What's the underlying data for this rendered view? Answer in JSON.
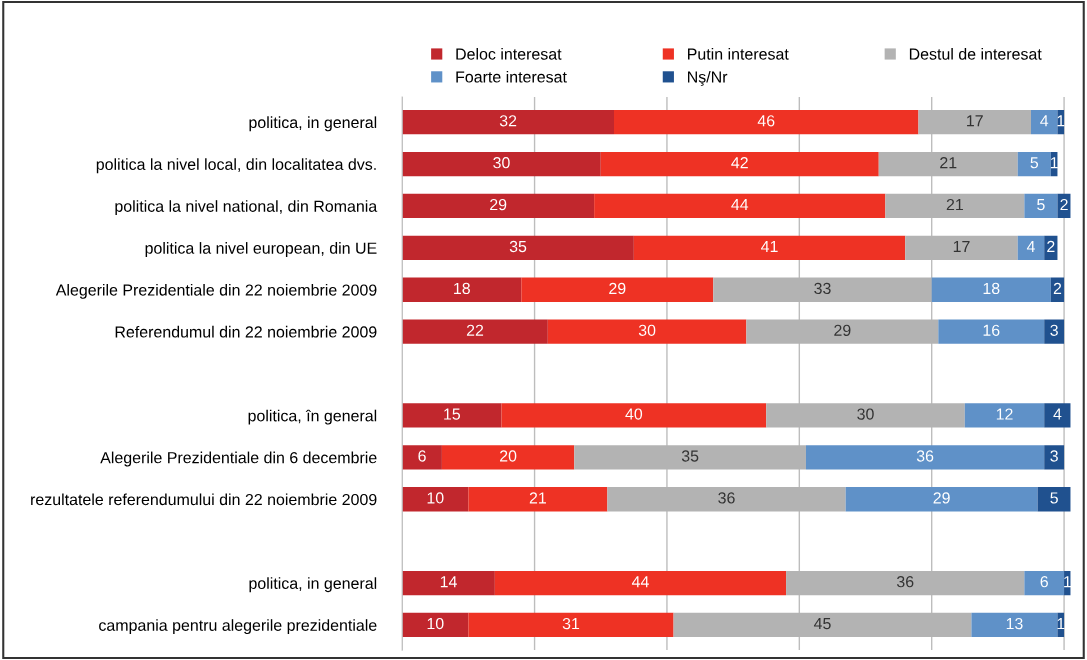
{
  "chart_data": {
    "type": "bar",
    "orientation": "horizontal",
    "stacked": true,
    "data_labels": true,
    "grid": "x",
    "legend": "top",
    "tick_labels": "y",
    "categories": [
      "politica, in general",
      "politica la nivel local, din localitatea dvs.",
      "politica la nivel national, din Romania",
      "politica la nivel european, din UE",
      "Alegerile Prezidentiale din 22 noiembrie 2009",
      "Referendumul din 22 noiembrie 2009",
      null,
      "politica, în general",
      "Alegerile Prezidentiale din 6 decembrie",
      "rezultatele referendumului din 22 noiembrie 2009",
      null,
      "politica, in general",
      "campania pentru alegerile prezidentiale"
    ],
    "xlim": [
      0,
      101
    ],
    "xticks": [
      {
        "value": 0,
        "label": null
      },
      {
        "value": 20,
        "label": null
      },
      {
        "value": 40,
        "label": null
      },
      {
        "value": 60,
        "label": null
      },
      {
        "value": 80,
        "label": null
      },
      {
        "value": 100,
        "label": null
      }
    ],
    "series": [
      {
        "name": "Deloc interesat",
        "color": "#c1272d",
        "values": [
          32,
          30,
          29,
          35,
          18,
          22,
          null,
          15,
          6,
          10,
          null,
          14,
          10
        ]
      },
      {
        "name": "Putin interesat",
        "color": "#ee3224",
        "values": [
          46,
          42,
          44,
          41,
          29,
          30,
          null,
          40,
          20,
          21,
          null,
          44,
          31
        ]
      },
      {
        "name": "Destul de interesat",
        "color": "#b3b3b3",
        "values": [
          17,
          21,
          21,
          17,
          33,
          29,
          null,
          30,
          35,
          36,
          null,
          36,
          45
        ]
      },
      {
        "name": "Foarte interesat",
        "color": "#5f91c8",
        "values": [
          4,
          5,
          5,
          4,
          18,
          16,
          null,
          12,
          36,
          29,
          null,
          6,
          13
        ]
      },
      {
        "name": "Nş/Nr",
        "color": "#20518f",
        "values": [
          1,
          1,
          2,
          2,
          2,
          3,
          null,
          4,
          3,
          5,
          null,
          1,
          1
        ]
      }
    ]
  }
}
